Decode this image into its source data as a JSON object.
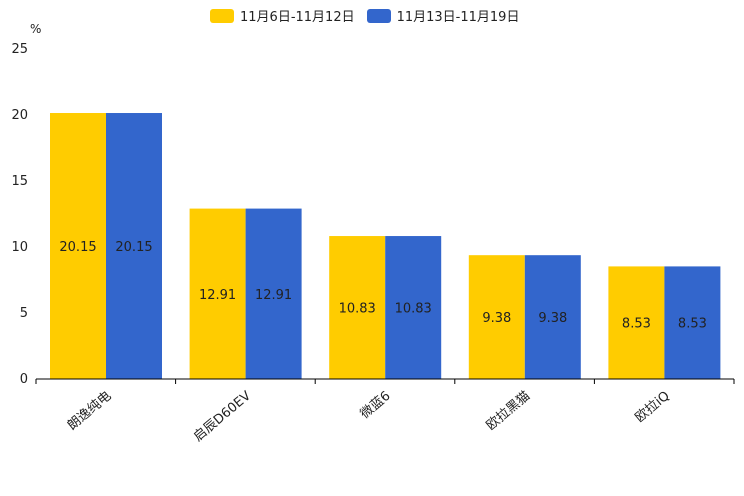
{
  "chart_data": {
    "type": "bar",
    "unit_label": "%",
    "categories": [
      "朗逸纯电",
      "启辰D60EV",
      "微蓝6",
      "欧拉黑猫",
      "欧拉iQ"
    ],
    "series": [
      {
        "name": "11月6日-11月12日",
        "color": "#FFCC00",
        "values": [
          20.15,
          12.91,
          10.83,
          9.38,
          8.53
        ]
      },
      {
        "name": "11月13日-11月19日",
        "color": "#3366CC",
        "values": [
          20.15,
          12.91,
          10.83,
          9.38,
          8.53
        ]
      }
    ],
    "data_labels": [
      [
        "20.15",
        "12.91",
        "10.83",
        "9.38",
        "8.53"
      ],
      [
        "20.15",
        "12.91",
        "10.83",
        "9.38",
        "8.53"
      ]
    ],
    "ylim": [
      0,
      25
    ],
    "yticks": [
      0,
      5,
      10,
      15,
      20,
      25
    ],
    "title": "",
    "xlabel": "",
    "ylabel": "%",
    "legend_position": "top-center"
  }
}
